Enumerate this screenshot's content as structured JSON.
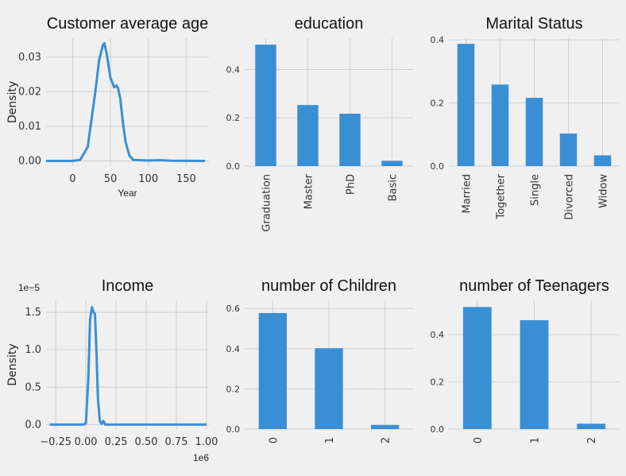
{
  "colors": {
    "background": "#f0f0f0",
    "series": "#3a8fd4",
    "grid": "#cfcfcf"
  },
  "chart_data": [
    {
      "type": "line",
      "title": "Customer average age",
      "xlabel": "Year",
      "ylabel": "Density",
      "xlim": [
        -35,
        180
      ],
      "ylim": [
        -0.0015,
        0.0355
      ],
      "xticks": [
        0,
        50,
        100,
        150
      ],
      "yticks": [
        0.0,
        0.01,
        0.02,
        0.03
      ],
      "ytick_labels": [
        "0.00",
        "0.01",
        "0.02",
        "0.03"
      ],
      "grid": true,
      "x": [
        -35,
        0,
        10,
        20,
        25,
        30,
        35,
        40,
        42,
        45,
        50,
        55,
        58,
        60,
        63,
        67,
        70,
        75,
        80,
        100,
        115,
        130,
        175
      ],
      "y": [
        0,
        0,
        0.0003,
        0.004,
        0.012,
        0.02,
        0.029,
        0.0335,
        0.034,
        0.031,
        0.024,
        0.0213,
        0.0218,
        0.021,
        0.018,
        0.01,
        0.0055,
        0.0015,
        0.0003,
        0.0001,
        0.0002,
        5e-05,
        0
      ]
    },
    {
      "type": "bar",
      "title": "education",
      "categories": [
        "Graduation",
        "Master",
        "PhD",
        "Basic"
      ],
      "values": [
        0.503,
        0.253,
        0.217,
        0.022
      ],
      "ylim": [
        0,
        0.53
      ],
      "yticks": [
        0.0,
        0.2,
        0.4
      ],
      "ytick_labels": [
        "0.0",
        "0.2",
        "0.4"
      ],
      "grid": true
    },
    {
      "type": "bar",
      "title": "Marital Status",
      "categories": [
        "Married",
        "Together",
        "Single",
        "Divorced",
        "Widow"
      ],
      "values": [
        0.387,
        0.258,
        0.216,
        0.103,
        0.034
      ],
      "ylim": [
        0,
        0.405
      ],
      "yticks": [
        0.0,
        0.2,
        0.4
      ],
      "ytick_labels": [
        "0.0",
        "0.2",
        "0.4"
      ],
      "grid": true
    },
    {
      "type": "line",
      "title": "Income",
      "ylabel": "Density",
      "scale_label": "1e−5",
      "x_offset_label": "1e6",
      "xlim": [
        -0.33,
        1.02
      ],
      "ylim": [
        -0.06,
        1.66
      ],
      "xticks": [
        -0.25,
        0.0,
        0.25,
        0.5,
        0.75,
        1.0
      ],
      "xtick_labels": [
        "−0.25",
        "0.00",
        "0.25",
        "0.50",
        "0.75",
        "1.00"
      ],
      "yticks": [
        0.0,
        0.5,
        1.0,
        1.5
      ],
      "ytick_labels": [
        "0.0",
        "0.5",
        "1.0",
        "1.5"
      ],
      "grid": true,
      "x": [
        -0.3,
        -0.02,
        0.0,
        0.02,
        0.035,
        0.05,
        0.065,
        0.075,
        0.085,
        0.1,
        0.115,
        0.13,
        0.145,
        0.16,
        0.3,
        0.6,
        1.0
      ],
      "y": [
        0,
        0,
        0.02,
        0.6,
        1.4,
        1.57,
        1.5,
        1.48,
        1.1,
        0.35,
        0.05,
        0.01,
        0.05,
        0,
        0,
        0,
        0
      ]
    },
    {
      "type": "bar",
      "title": "number of Children",
      "categories": [
        "0",
        "1",
        "2"
      ],
      "values": [
        0.577,
        0.402,
        0.021
      ],
      "ylim": [
        0,
        0.64
      ],
      "yticks": [
        0.0,
        0.2,
        0.4,
        0.6
      ],
      "ytick_labels": [
        "0.0",
        "0.2",
        "0.4",
        "0.6"
      ],
      "grid": true
    },
    {
      "type": "bar",
      "title": "number of Teenagers",
      "categories": [
        "0",
        "1",
        "2"
      ],
      "values": [
        0.517,
        0.461,
        0.023
      ],
      "ylim": [
        0,
        0.545
      ],
      "yticks": [
        0.0,
        0.2,
        0.4
      ],
      "ytick_labels": [
        "0.0",
        "0.2",
        "0.4"
      ],
      "grid": true
    }
  ]
}
